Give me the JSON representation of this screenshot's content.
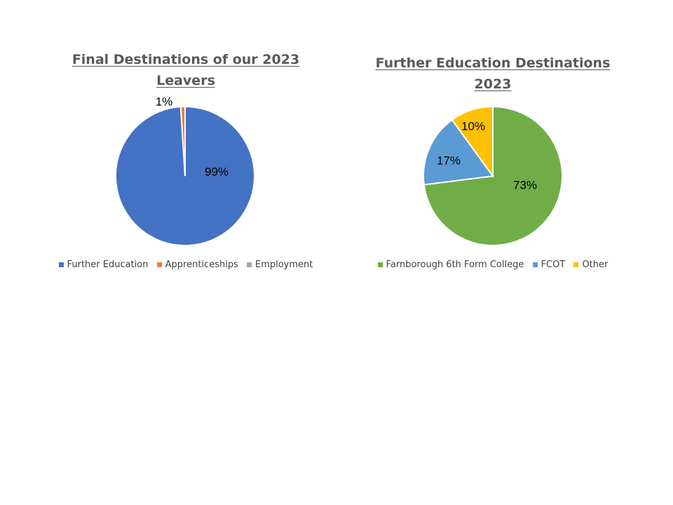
{
  "chart_data": [
    {
      "type": "pie",
      "title": "Final Destinations of our 2023 Leavers",
      "categories": [
        "Further Education",
        "Apprenticeships",
        "Employment"
      ],
      "values": [
        99,
        1,
        0
      ],
      "data_labels": [
        "99%",
        "1%",
        ""
      ],
      "colors": [
        "#4472C4",
        "#ED7D31",
        "#A5A5A5"
      ],
      "legend_position": "bottom"
    },
    {
      "type": "pie",
      "title": "Further Education Destinations 2023",
      "categories": [
        "Farnborough 6th Form College",
        "FCOT",
        "Other"
      ],
      "values": [
        73,
        17,
        10
      ],
      "data_labels": [
        "73%",
        "17%",
        "10%"
      ],
      "colors": [
        "#70AD47",
        "#5B9BD5",
        "#FFC000"
      ],
      "legend_position": "bottom"
    }
  ]
}
